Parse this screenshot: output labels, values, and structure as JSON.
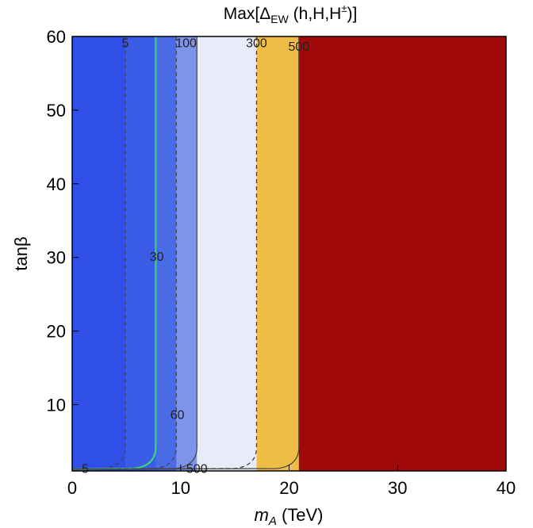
{
  "chart_data": {
    "type": "contour",
    "title": "Max[Δ",
    "title_sub": "EW",
    "title_rest": " (h,H,H",
    "title_sup": "±",
    "title_end": ")]",
    "xlabel": "m",
    "xlabel_sub": "A",
    "xlabel_unit": " (TeV)",
    "ylabel": "tanβ",
    "xlim": [
      0,
      40
    ],
    "ylim": [
      1,
      60
    ],
    "xticks": [
      "0",
      "10",
      "20",
      "30",
      "40"
    ],
    "yticks": [
      "10",
      "20",
      "30",
      "40",
      "50",
      "60"
    ],
    "xtick_values": [
      0,
      10,
      20,
      30,
      40
    ],
    "ytick_values": [
      10,
      20,
      30,
      40,
      50,
      60
    ],
    "regions": [
      {
        "from": 0,
        "to": 4.9,
        "color": "#2f4fe8"
      },
      {
        "from": 4.9,
        "to": 7.7,
        "color": "#3b5ce6"
      },
      {
        "from": 7.7,
        "to": 9.6,
        "color": "#4a6be6"
      },
      {
        "from": 9.6,
        "to": 11.5,
        "color": "#7e93ea"
      },
      {
        "from": 11.5,
        "to": 17.0,
        "color": "#e8ecfa"
      },
      {
        "from": 17.0,
        "to": 20.9,
        "color": "#efbc45"
      },
      {
        "from": 20.9,
        "to": 40,
        "color": "#a10a0a"
      }
    ],
    "contours": [
      {
        "level": "5",
        "x": 4.9,
        "color": "#444444",
        "dashed": true
      },
      {
        "level": "30",
        "x": 7.7,
        "color": "#39d27d",
        "dashed": false
      },
      {
        "level": "60",
        "x": 9.6,
        "color": "#444444",
        "dashed": true
      },
      {
        "level": "100",
        "x": 11.5,
        "color": "#444444",
        "dashed": false
      },
      {
        "level": "300",
        "x": 17.0,
        "color": "#444444",
        "dashed": true
      },
      {
        "level": "500",
        "x": 20.9,
        "color": "#444444",
        "dashed": false
      }
    ],
    "labels": [
      {
        "text": "5",
        "x": 4.9,
        "y": 59
      },
      {
        "text": "100",
        "x": 10.5,
        "y": 59
      },
      {
        "text": "300",
        "x": 17.0,
        "y": 59
      },
      {
        "text": "500",
        "x": 20.9,
        "y": 58.5
      },
      {
        "text": "30",
        "x": 7.8,
        "y": 30
      },
      {
        "text": "60",
        "x": 9.7,
        "y": 8.5
      },
      {
        "text": "5",
        "x": 1.2,
        "y": 1.2
      },
      {
        "text": "500",
        "x": 11.5,
        "y": 1.2
      }
    ]
  }
}
